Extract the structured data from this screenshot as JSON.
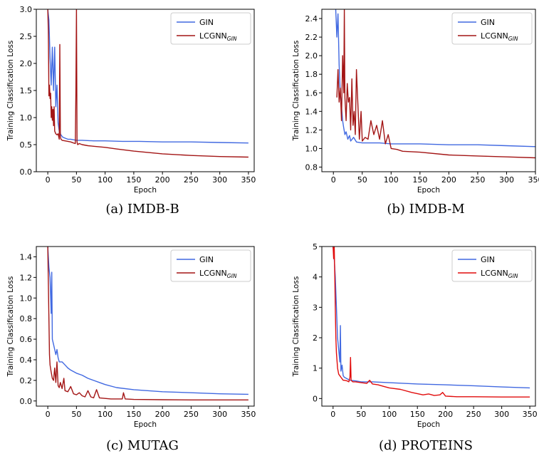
{
  "chart_data": [
    {
      "type": "line",
      "caption": "(a) IMDB-B",
      "xlabel": "Epoch",
      "ylabel": "Training Classification Loss",
      "xlim": [
        -20,
        360
      ],
      "ylim": [
        0,
        3.0
      ],
      "xticks": [
        0,
        50,
        100,
        150,
        200,
        250,
        300,
        350
      ],
      "yticks": [
        0.0,
        0.5,
        1.0,
        1.5,
        2.0,
        2.5,
        3.0
      ],
      "ytick_labels": [
        "0.0",
        "0.5",
        "1.0",
        "1.5",
        "2.0",
        "2.5",
        "3.0"
      ],
      "legend": "top-right",
      "series": [
        {
          "name": "GIN",
          "legend_main": "GIN",
          "legend_sub": "",
          "color": "#4169e1",
          "x": [
            0,
            2,
            4,
            6,
            8,
            10,
            12,
            14,
            16,
            18,
            20,
            23,
            26,
            30,
            35,
            40,
            50,
            60,
            80,
            100,
            130,
            160,
            200,
            250,
            300,
            350
          ],
          "y": [
            3.0,
            2.8,
            2.1,
            1.6,
            2.3,
            1.5,
            2.3,
            1.2,
            1.6,
            0.9,
            0.75,
            0.68,
            0.64,
            0.62,
            0.6,
            0.6,
            0.58,
            0.58,
            0.57,
            0.57,
            0.56,
            0.56,
            0.55,
            0.55,
            0.54,
            0.53
          ]
        },
        {
          "name": "LCGNN_GIN",
          "legend_main": "LCGNN",
          "legend_sub": "GIN",
          "color": "#a31515",
          "x": [
            0,
            1,
            2,
            3,
            4,
            5,
            6,
            7,
            8,
            9,
            10,
            11,
            12,
            14,
            16,
            18,
            20,
            21,
            22,
            23,
            25,
            30,
            35,
            40,
            45,
            48,
            49,
            50,
            51,
            52,
            55,
            60,
            70,
            80,
            100,
            120,
            150,
            200,
            250,
            300,
            350
          ],
          "y": [
            3.0,
            2.6,
            1.4,
            1.6,
            1.35,
            1.45,
            1.0,
            1.2,
            0.95,
            1.15,
            0.85,
            1.2,
            0.75,
            0.7,
            0.68,
            0.7,
            0.6,
            2.35,
            0.65,
            0.6,
            0.58,
            0.57,
            0.56,
            0.55,
            0.53,
            0.52,
            1.5,
            3.0,
            0.55,
            0.5,
            0.52,
            0.5,
            0.48,
            0.47,
            0.45,
            0.42,
            0.38,
            0.33,
            0.3,
            0.28,
            0.27
          ]
        }
      ]
    },
    {
      "type": "line",
      "caption": "(b) IMDB-M",
      "xlabel": "Epoch",
      "ylabel": "Training Classification Loss",
      "xlim": [
        -20,
        350
      ],
      "ylim": [
        0.75,
        2.5
      ],
      "xticks": [
        0,
        50,
        100,
        150,
        200,
        250,
        300,
        350
      ],
      "yticks": [
        0.8,
        1.0,
        1.2,
        1.4,
        1.6,
        1.8,
        2.0,
        2.2,
        2.4
      ],
      "ytick_labels": [
        "0.8",
        "1.0",
        "1.2",
        "1.4",
        "1.6",
        "1.8",
        "2.0",
        "2.2",
        "2.4"
      ],
      "legend": "top-right",
      "series": [
        {
          "name": "GIN",
          "legend_main": "GIN",
          "legend_sub": "",
          "color": "#4169e1",
          "x": [
            4,
            6,
            8,
            10,
            12,
            14,
            16,
            18,
            20,
            22,
            25,
            28,
            30,
            35,
            40,
            50,
            60,
            80,
            100,
            150,
            200,
            250,
            300,
            350
          ],
          "y": [
            2.5,
            2.2,
            2.45,
            1.9,
            1.6,
            1.45,
            1.3,
            1.22,
            1.15,
            1.18,
            1.1,
            1.14,
            1.08,
            1.12,
            1.07,
            1.06,
            1.06,
            1.06,
            1.05,
            1.05,
            1.04,
            1.04,
            1.03,
            1.02
          ]
        },
        {
          "name": "LCGNN_GIN",
          "legend_main": "LCGNN",
          "legend_sub": "GIN",
          "color": "#a31515",
          "x": [
            6,
            8,
            10,
            12,
            14,
            16,
            18,
            19,
            20,
            22,
            24,
            26,
            28,
            30,
            32,
            34,
            36,
            38,
            40,
            45,
            48,
            50,
            55,
            60,
            65,
            70,
            75,
            80,
            85,
            90,
            95,
            100,
            110,
            120,
            150,
            200,
            250,
            300,
            350
          ],
          "y": [
            1.55,
            1.85,
            1.5,
            1.65,
            1.3,
            2.0,
            1.6,
            2.5,
            1.55,
            1.3,
            1.7,
            1.5,
            1.55,
            1.2,
            1.75,
            1.25,
            1.4,
            1.15,
            1.85,
            1.1,
            1.4,
            1.08,
            1.12,
            1.1,
            1.3,
            1.15,
            1.25,
            1.1,
            1.3,
            1.05,
            1.15,
            1.0,
            0.99,
            0.97,
            0.96,
            0.93,
            0.92,
            0.91,
            0.9
          ]
        }
      ]
    },
    {
      "type": "line",
      "caption": "(c) MUTAG",
      "xlabel": "Epoch",
      "ylabel": "Training Classification Loss",
      "xlim": [
        -20,
        360
      ],
      "ylim": [
        -0.05,
        1.5
      ],
      "xticks": [
        0,
        50,
        100,
        150,
        200,
        250,
        300,
        350
      ],
      "yticks": [
        0.0,
        0.2,
        0.4,
        0.6,
        0.8,
        1.0,
        1.2,
        1.4
      ],
      "ytick_labels": [
        "0.0",
        "0.2",
        "0.4",
        "0.6",
        "0.8",
        "1.0",
        "1.2",
        "1.4"
      ],
      "legend": "top-right",
      "series": [
        {
          "name": "GIN",
          "legend_main": "GIN",
          "legend_sub": "",
          "color": "#4169e1",
          "x": [
            0,
            2,
            4,
            6,
            7,
            8,
            10,
            12,
            14,
            16,
            18,
            20,
            25,
            30,
            35,
            40,
            50,
            60,
            70,
            80,
            90,
            100,
            120,
            150,
            200,
            250,
            300,
            350
          ],
          "y": [
            1.5,
            1.3,
            1.2,
            0.85,
            1.25,
            0.6,
            0.55,
            0.5,
            0.45,
            0.5,
            0.42,
            0.38,
            0.38,
            0.35,
            0.32,
            0.3,
            0.27,
            0.25,
            0.22,
            0.2,
            0.18,
            0.16,
            0.13,
            0.11,
            0.09,
            0.08,
            0.07,
            0.065
          ]
        },
        {
          "name": "LCGNN_GIN",
          "legend_main": "LCGNN",
          "legend_sub": "GIN",
          "color": "#a31515",
          "x": [
            0,
            2,
            3,
            4,
            6,
            8,
            10,
            12,
            14,
            16,
            18,
            20,
            22,
            25,
            28,
            30,
            35,
            40,
            45,
            50,
            55,
            60,
            65,
            70,
            75,
            80,
            85,
            90,
            100,
            110,
            120,
            130,
            132,
            135,
            150,
            200,
            250,
            300,
            350
          ],
          "y": [
            1.5,
            0.8,
            0.45,
            0.35,
            0.28,
            0.22,
            0.2,
            0.32,
            0.18,
            0.38,
            0.15,
            0.13,
            0.18,
            0.12,
            0.22,
            0.1,
            0.09,
            0.14,
            0.07,
            0.06,
            0.08,
            0.05,
            0.04,
            0.1,
            0.04,
            0.03,
            0.11,
            0.03,
            0.025,
            0.02,
            0.02,
            0.02,
            0.08,
            0.02,
            0.015,
            0.012,
            0.01,
            0.01,
            0.01
          ]
        }
      ]
    },
    {
      "type": "line",
      "caption": "(d) PROTEINS",
      "xlabel": "Epoch",
      "ylabel": "Training Classification Loss",
      "xlim": [
        -20,
        360
      ],
      "ylim": [
        -0.25,
        5.0
      ],
      "xticks": [
        0,
        50,
        100,
        150,
        200,
        250,
        300,
        350
      ],
      "yticks": [
        0,
        1,
        2,
        3,
        4,
        5
      ],
      "ytick_labels": [
        "0",
        "1",
        "2",
        "3",
        "4",
        "5"
      ],
      "legend": "top-right",
      "series": [
        {
          "name": "GIN",
          "legend_main": "GIN",
          "legend_sub": "",
          "color": "#4169e1",
          "x": [
            0,
            2,
            4,
            6,
            8,
            10,
            12,
            13,
            14,
            16,
            18,
            20,
            25,
            30,
            40,
            50,
            70,
            100,
            150,
            200,
            250,
            300,
            350
          ],
          "y": [
            5.0,
            4.6,
            4.0,
            3.0,
            2.0,
            1.6,
            1.2,
            2.4,
            0.9,
            1.1,
            0.75,
            0.7,
            0.65,
            0.6,
            0.58,
            0.55,
            0.55,
            0.52,
            0.48,
            0.45,
            0.42,
            0.38,
            0.35
          ]
        },
        {
          "name": "LCGNN_GIN",
          "legend_main": "LCGNN",
          "legend_sub": "GIN",
          "color": "#e10c0c",
          "x": [
            0,
            1,
            2,
            3,
            4,
            5,
            6,
            8,
            10,
            12,
            14,
            16,
            18,
            20,
            25,
            28,
            30,
            31,
            32,
            35,
            40,
            50,
            60,
            65,
            70,
            80,
            90,
            100,
            120,
            140,
            160,
            170,
            180,
            190,
            195,
            200,
            220,
            250,
            300,
            350
          ],
          "y": [
            5.0,
            4.6,
            5.0,
            4.0,
            3.0,
            2.0,
            1.5,
            1.0,
            0.8,
            0.75,
            0.7,
            0.65,
            0.6,
            0.6,
            0.58,
            0.55,
            0.7,
            1.35,
            0.6,
            0.55,
            0.55,
            0.52,
            0.5,
            0.6,
            0.48,
            0.45,
            0.4,
            0.35,
            0.3,
            0.2,
            0.12,
            0.15,
            0.1,
            0.12,
            0.2,
            0.08,
            0.06,
            0.06,
            0.05,
            0.05
          ]
        }
      ]
    }
  ]
}
